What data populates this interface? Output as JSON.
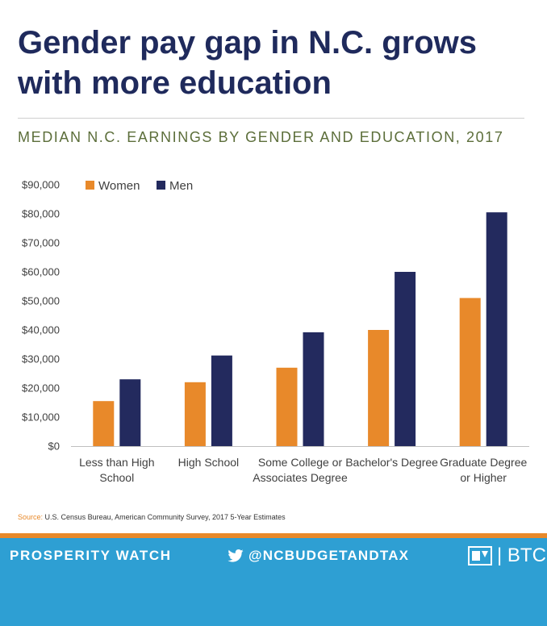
{
  "headline": "Gender pay gap in N.C. grows with more education",
  "subtitle": "MEDIAN N.C. EARNINGS BY GENDER AND EDUCATION, 2017",
  "source": {
    "label": "Source:",
    "text": "U.S. Census Bureau, American Community Survey, 2017 5-Year Estimates"
  },
  "footer": {
    "left": "PROSPERITY WATCH",
    "handle": "@NCBUDGETANDTAX",
    "brand": "| BTC"
  },
  "icons": [
    "twitter-icon",
    "btc-logo-icon"
  ],
  "colors": {
    "women": "#e8892a",
    "men": "#232a5e",
    "headline": "#1f2a5c",
    "subtitle": "#5c6e3a",
    "footer": "#2e9fd3",
    "accent_strip": "#e8892a"
  },
  "chart_data": {
    "type": "bar",
    "categories": [
      [
        "Less than High",
        "School"
      ],
      [
        "High School"
      ],
      [
        "Some College or",
        "Associates Degree"
      ],
      [
        "Bachelor's Degree"
      ],
      [
        "Graduate Degree",
        "or Higher"
      ]
    ],
    "series": [
      {
        "name": "Women",
        "values": [
          15500,
          22000,
          27000,
          40000,
          51000
        ]
      },
      {
        "name": "Men",
        "values": [
          23000,
          31200,
          39200,
          60000,
          80500
        ]
      }
    ],
    "ylim": [
      0,
      90000
    ],
    "yticks": [
      "$0",
      "$10,000",
      "$20,000",
      "$30,000",
      "$40,000",
      "$50,000",
      "$60,000",
      "$70,000",
      "$80,000",
      "$90,000"
    ],
    "legend": "top-left",
    "grid": false
  }
}
